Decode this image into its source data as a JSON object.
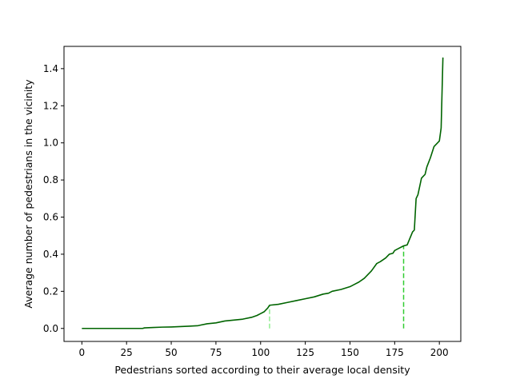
{
  "chart_data": {
    "type": "line",
    "title": "",
    "xlabel": "Pedestrians sorted according to their average local density",
    "ylabel": "Average number of pedestrians in the vicinity",
    "xlim": [
      -10,
      212
    ],
    "ylim": [
      -0.07,
      1.52
    ],
    "xticks": [
      0,
      25,
      50,
      75,
      100,
      125,
      150,
      175,
      200
    ],
    "yticks": [
      0.0,
      0.2,
      0.4,
      0.6,
      0.8,
      1.0,
      1.2,
      1.4
    ],
    "grid": false,
    "legend": "none",
    "series": [
      {
        "color": "#006400",
        "x": [
          0,
          10,
          20,
          30,
          34,
          35,
          40,
          45,
          50,
          55,
          60,
          65,
          70,
          75,
          80,
          85,
          90,
          95,
          98,
          100,
          102,
          104,
          105,
          110,
          115,
          120,
          125,
          130,
          135,
          138,
          140,
          145,
          150,
          153,
          155,
          158,
          160,
          162,
          165,
          167,
          170,
          172,
          174,
          175,
          177,
          180,
          182,
          185,
          186,
          187,
          188,
          190,
          191,
          192,
          193,
          195,
          197,
          199,
          200,
          201,
          202
        ],
        "y": [
          0.0,
          0.0,
          0.0,
          0.0,
          0.0,
          0.003,
          0.005,
          0.007,
          0.008,
          0.01,
          0.012,
          0.015,
          0.025,
          0.03,
          0.04,
          0.045,
          0.05,
          0.06,
          0.07,
          0.08,
          0.09,
          0.11,
          0.125,
          0.13,
          0.14,
          0.15,
          0.16,
          0.17,
          0.185,
          0.19,
          0.2,
          0.21,
          0.225,
          0.24,
          0.25,
          0.27,
          0.29,
          0.31,
          0.35,
          0.36,
          0.38,
          0.4,
          0.405,
          0.42,
          0.43,
          0.445,
          0.45,
          0.52,
          0.53,
          0.7,
          0.72,
          0.81,
          0.82,
          0.83,
          0.87,
          0.92,
          0.98,
          1.0,
          1.01,
          1.08,
          1.46
        ]
      }
    ],
    "markers": [
      {
        "x": 105,
        "y": 0.125,
        "color": "#90ee90",
        "style": "dashed"
      },
      {
        "x": 180,
        "y": 0.445,
        "color": "#32cd32",
        "style": "dashed"
      }
    ]
  }
}
